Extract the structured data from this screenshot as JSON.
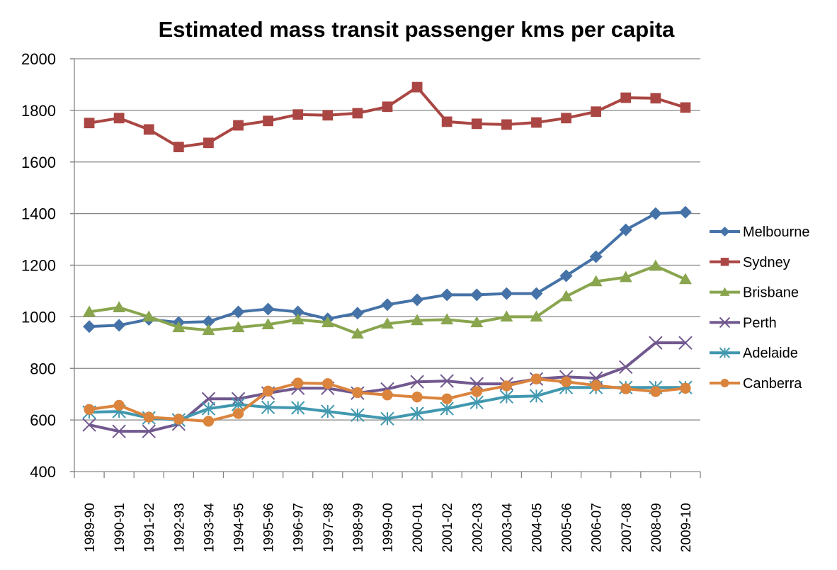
{
  "chart_data": {
    "type": "line",
    "title": "Estimated mass transit passenger kms per capita",
    "xlabel": "",
    "ylabel": "",
    "ylim": [
      400,
      2000
    ],
    "yticks": [
      400,
      600,
      800,
      1000,
      1200,
      1400,
      1600,
      1800,
      2000
    ],
    "grid": true,
    "legend_position": "right",
    "categories": [
      "1989-90",
      "1990-91",
      "1991-92",
      "1992-93",
      "1993-94",
      "1994-95",
      "1995-96",
      "1996-97",
      "1997-98",
      "1998-99",
      "1999-00",
      "2000-01",
      "2001-02",
      "2002-03",
      "2003-04",
      "2004-05",
      "2005-06",
      "2006-07",
      "2007-08",
      "2008-09",
      "2009-10"
    ],
    "series": [
      {
        "name": "Melbourne",
        "color": "#4572A7",
        "marker": "diamond",
        "values": [
          962,
          967,
          990,
          978,
          981,
          1019,
          1030,
          1019,
          992,
          1014,
          1047,
          1066,
          1085,
          1085,
          1090,
          1090,
          1159,
          1233,
          1337,
          1400,
          1405
        ]
      },
      {
        "name": "Sydney",
        "color": "#AA4643",
        "marker": "square",
        "values": [
          1751,
          1770,
          1726,
          1658,
          1674,
          1742,
          1759,
          1784,
          1781,
          1789,
          1814,
          1890,
          1756,
          1748,
          1745,
          1753,
          1770,
          1795,
          1849,
          1847,
          1811
        ]
      },
      {
        "name": "Brisbane",
        "color": "#89A54E",
        "marker": "triangle",
        "values": [
          1019,
          1036,
          1000,
          959,
          948,
          959,
          970,
          989,
          978,
          934,
          973,
          986,
          989,
          978,
          1000,
          1000,
          1079,
          1137,
          1153,
          1197,
          1145
        ]
      },
      {
        "name": "Perth",
        "color": "#71588F",
        "marker": "x",
        "values": [
          581,
          556,
          556,
          584,
          682,
          682,
          704,
          723,
          723,
          704,
          720,
          748,
          751,
          740,
          740,
          759,
          767,
          762,
          805,
          899,
          899
        ]
      },
      {
        "name": "Adelaide",
        "color": "#4198AF",
        "marker": "star",
        "values": [
          630,
          633,
          608,
          600,
          644,
          660,
          649,
          647,
          633,
          619,
          605,
          625,
          644,
          668,
          690,
          693,
          726,
          726,
          726,
          726,
          726
        ]
      },
      {
        "name": "Canberra",
        "color": "#DB843D",
        "marker": "circle",
        "values": [
          641,
          657,
          611,
          603,
          595,
          625,
          712,
          743,
          741,
          706,
          697,
          689,
          682,
          710,
          732,
          759,
          748,
          734,
          721,
          710,
          723
        ]
      }
    ]
  }
}
